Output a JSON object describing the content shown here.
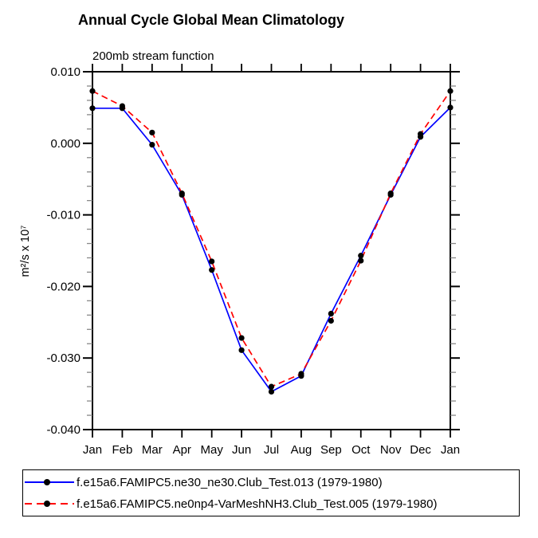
{
  "title": "Annual Cycle Global Mean Climatology",
  "subtitle": "200mb stream function",
  "chart_data": {
    "type": "line",
    "x": [
      "Jan",
      "Feb",
      "Mar",
      "Apr",
      "May",
      "Jun",
      "Jul",
      "Aug",
      "Sep",
      "Oct",
      "Nov",
      "Dec",
      "Jan"
    ],
    "xlabel": "",
    "ylabel": "m²/s x 10⁷",
    "ylim": [
      -0.04,
      0.01
    ],
    "ytick_labels": [
      "0.010",
      "0.000",
      "-0.010",
      "-0.020",
      "-0.030",
      "-0.040"
    ],
    "ytick_major_step": 0.01,
    "ytick_minor_step": 0.002,
    "grid": false,
    "legend_position": "bottom",
    "series": [
      {
        "name": "f.e15a6.FAMIPC5.ne30_ne30.Club_Test.013 (1979-1980)",
        "color": "#0000ff",
        "style": "solid",
        "marker": "circle",
        "marker_color": "#000000",
        "values": [
          0.0049,
          0.0049,
          -0.0002,
          -0.0072,
          -0.0177,
          -0.0289,
          -0.0347,
          -0.0325,
          -0.0238,
          -0.0157,
          -0.0072,
          0.0009,
          0.005
        ]
      },
      {
        "name": "f.e15a6.FAMIPC5.ne0np4-VarMeshNH3.Club_Test.005 (1979-1980)",
        "color": "#ff0000",
        "style": "dashed",
        "marker": "circle",
        "marker_color": "#000000",
        "values": [
          0.0073,
          0.0052,
          0.0015,
          -0.007,
          -0.0165,
          -0.0272,
          -0.034,
          -0.0322,
          -0.0248,
          -0.0164,
          -0.007,
          0.0013,
          0.0073
        ]
      }
    ]
  },
  "colors": {
    "axis": "#000000",
    "minor_tick": "#888888",
    "background": "#ffffff",
    "series1": "#0000ff",
    "series2": "#ff0000"
  }
}
